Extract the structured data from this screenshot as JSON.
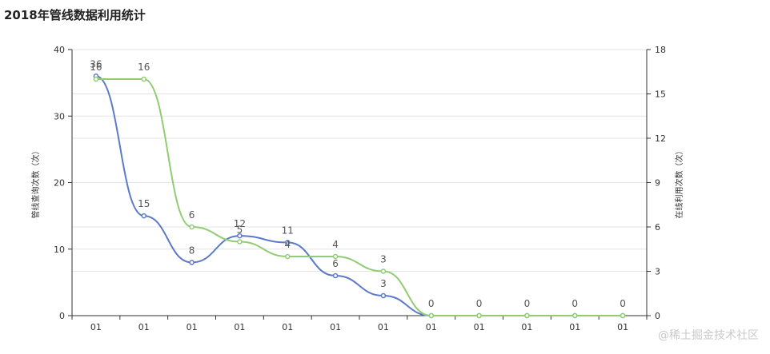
{
  "chart_data": {
    "type": "line",
    "title": "2018年管线数据利用统计",
    "categories": [
      "01",
      "01",
      "01",
      "01",
      "01",
      "01",
      "01",
      "01",
      "01",
      "01",
      "01",
      "01"
    ],
    "series": [
      {
        "axis": "left",
        "color": "#5b7bc8",
        "values": [
          36,
          15,
          8,
          12,
          11,
          6,
          3,
          0,
          0,
          0,
          0,
          0
        ],
        "labels": [
          "36",
          "15",
          "8",
          "12",
          "11",
          "6",
          "3",
          "",
          "",
          "",
          "",
          ""
        ]
      },
      {
        "axis": "right",
        "color": "#91cc75",
        "values": [
          16,
          16,
          6,
          5,
          4,
          4,
          3,
          0,
          0,
          0,
          0,
          0
        ],
        "labels": [
          "16",
          "16",
          "6",
          "5",
          "4",
          "4",
          "3",
          "0",
          "0",
          "0",
          "0",
          "0"
        ]
      }
    ],
    "left_axis": {
      "name": "管线查询次数（次）",
      "min": 0,
      "max": 40,
      "ticks": [
        0,
        10,
        20,
        30,
        40
      ]
    },
    "right_axis": {
      "name": "在线利用次数（次）",
      "min": 0,
      "max": 18,
      "ticks": [
        0,
        3,
        6,
        9,
        12,
        15,
        18
      ]
    },
    "grid": true,
    "smooth": true
  },
  "watermark": "@稀土掘金技术社区"
}
